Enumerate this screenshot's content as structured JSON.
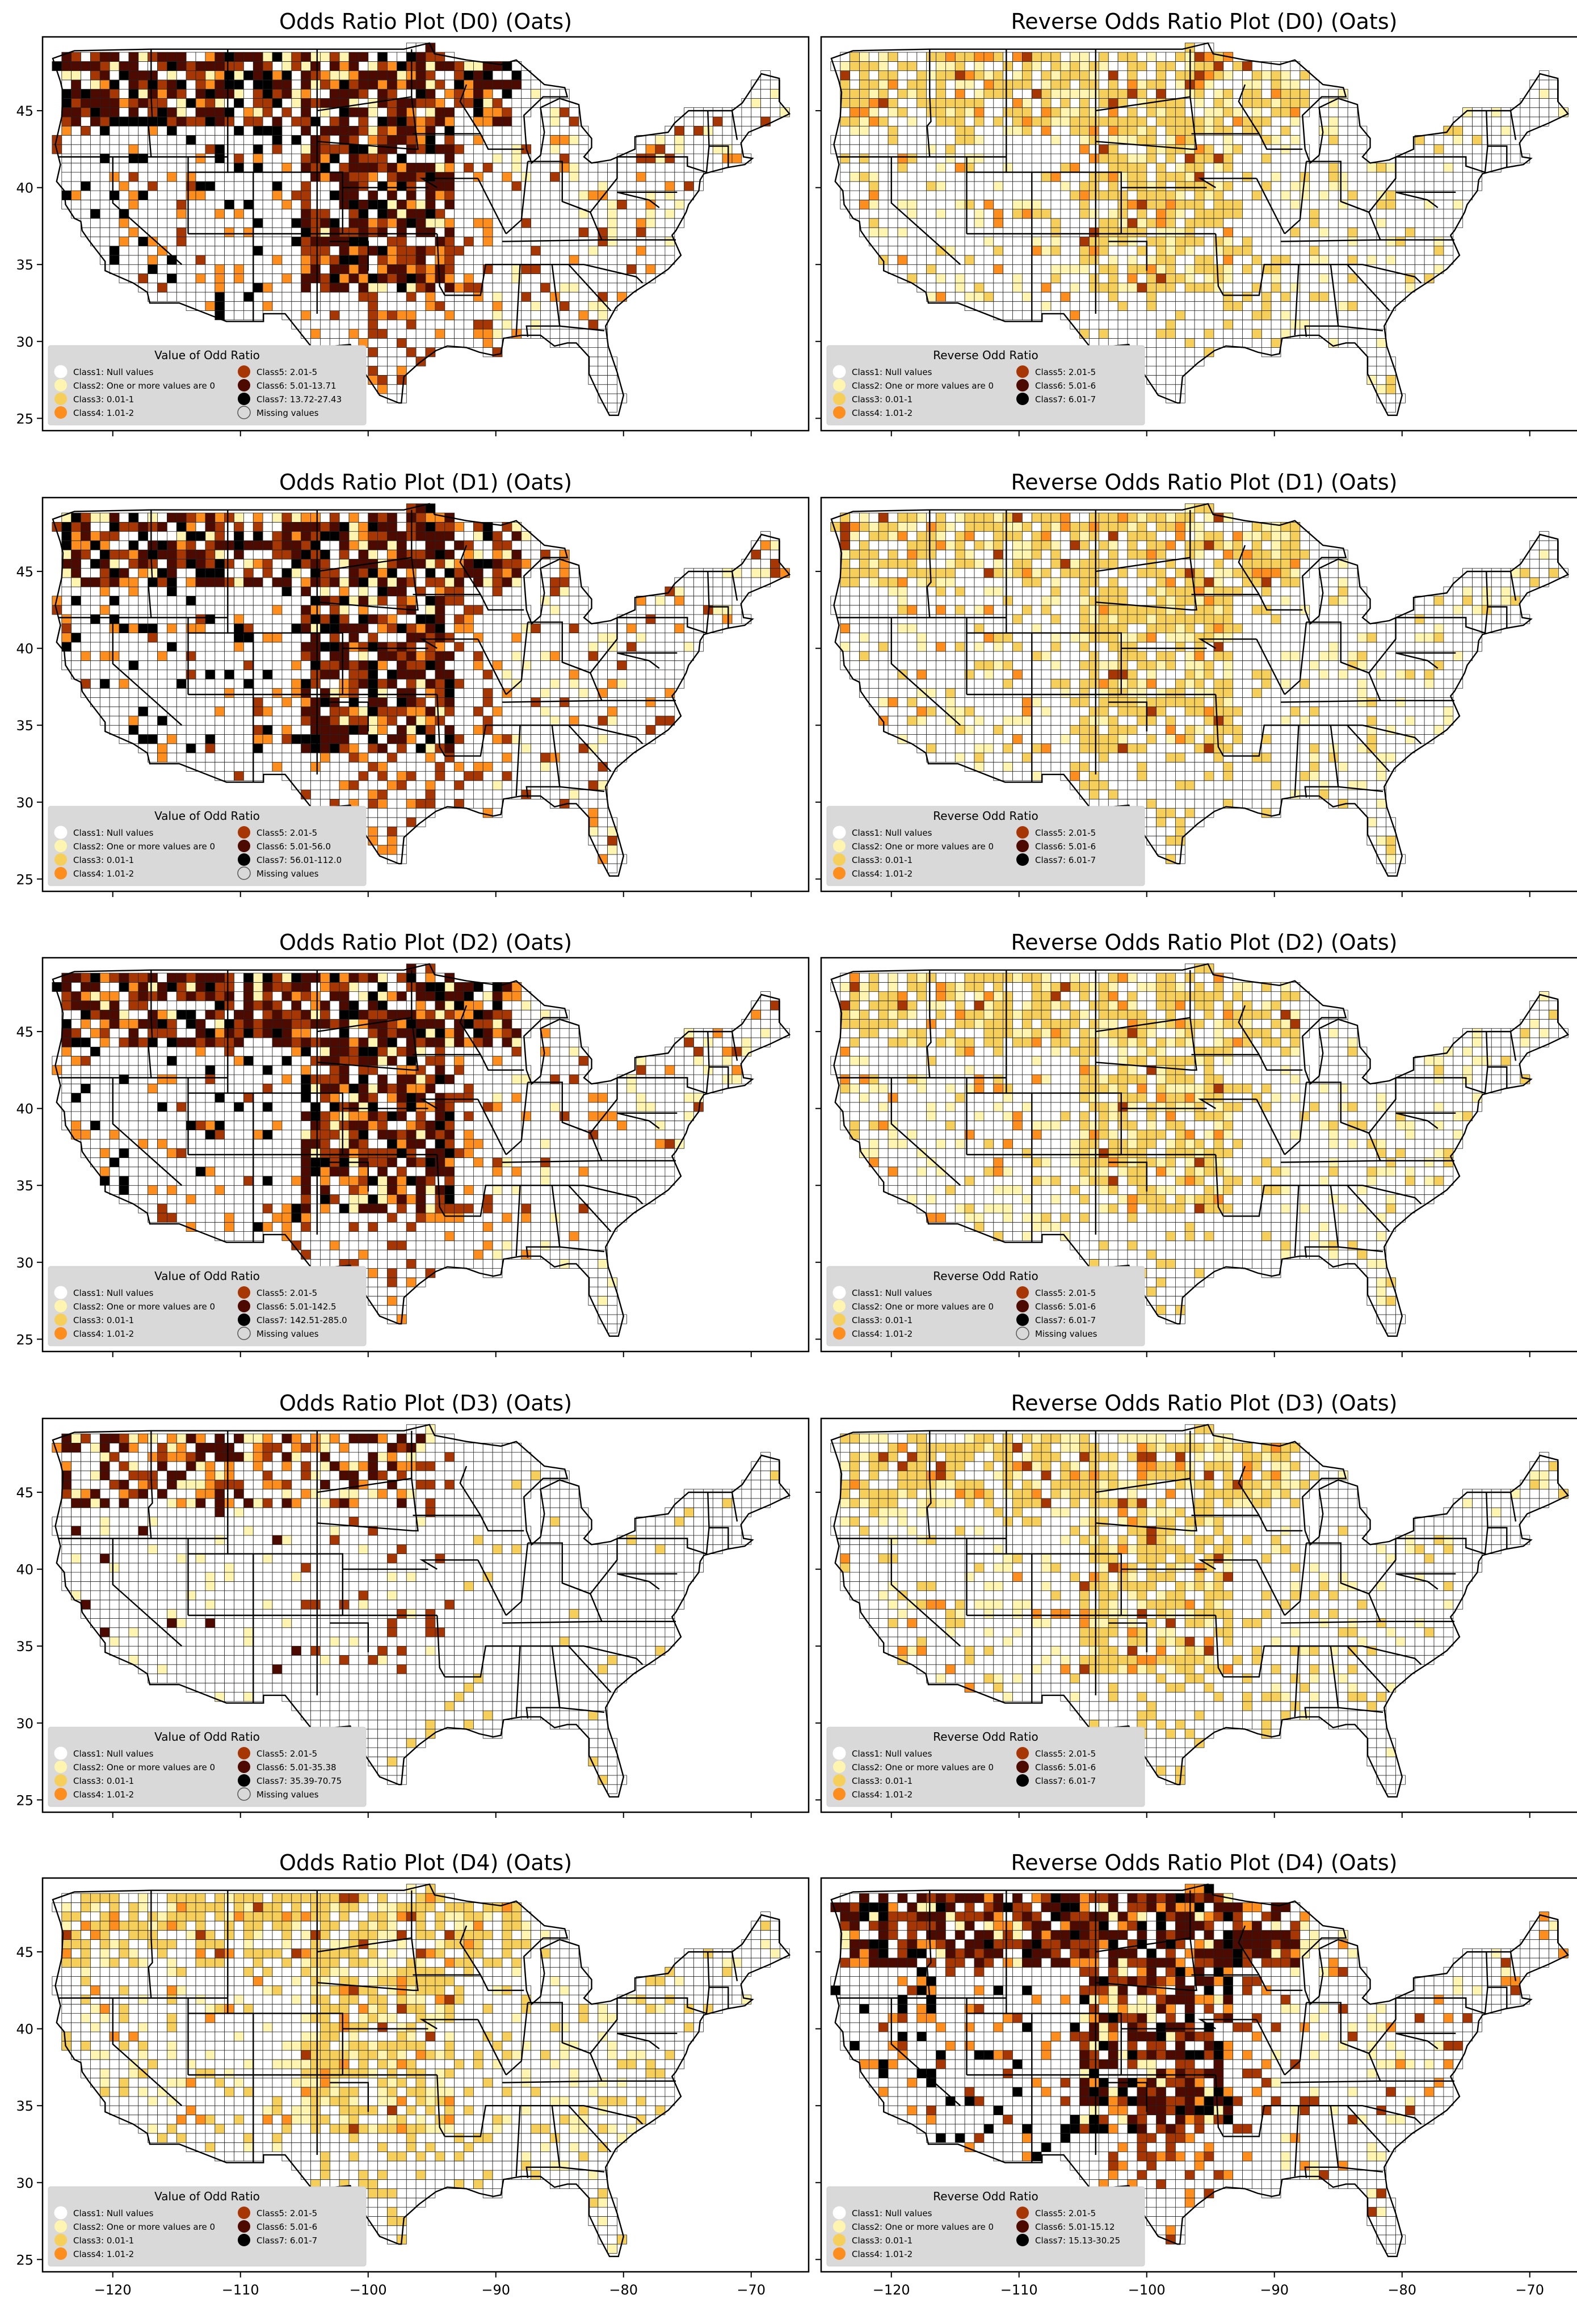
{
  "figure": {
    "x_ticks": [
      "-120",
      "-110",
      "-100",
      "-90",
      "-80",
      "-70"
    ],
    "y_ticks": [
      "25",
      "30",
      "35",
      "40",
      "45"
    ]
  },
  "legend_labels": {
    "odds_title": "Value of Odd Ratio",
    "reverse_title": "Reverse Odd Ratio",
    "c1": "Class1: Null values",
    "c2": "Class2: One or more values are 0",
    "c3": "Class3: 0.01-1",
    "c4": "Class4: 1.01-2",
    "c5": "Class5: 2.01-5",
    "missing": "Missing values"
  },
  "class_colors": {
    "c1": "#ffffff",
    "c2": "#fff5b0",
    "c3": "#f5cf5a",
    "c4": "#fd8d1c",
    "c5": "#a63603",
    "c6": "#4d0a00",
    "c7": "#000000",
    "missing": "#d9d9d9"
  },
  "panels": [
    {
      "title": "Odds Ratio Plot (D0) (Oats)",
      "legend_title": "Value of Odd Ratio",
      "c6": "Class6: 5.01-13.71",
      "c7": "Class7: 13.72-27.43",
      "missing": true,
      "dominant": "dark"
    },
    {
      "title": "Reverse Odds Ratio Plot (D0) (Oats)",
      "legend_title": "Reverse Odd Ratio",
      "c6": "Class6: 5.01-6",
      "c7": "Class7: 6.01-7",
      "missing": false,
      "dominant": "light"
    },
    {
      "title": "Odds Ratio Plot (D1) (Oats)",
      "legend_title": "Value of Odd Ratio",
      "c6": "Class6: 5.01-56.0",
      "c7": "Class7: 56.01-112.0",
      "missing": true,
      "dominant": "dark"
    },
    {
      "title": "Reverse Odds Ratio Plot (D1) (Oats)",
      "legend_title": "Reverse Odd Ratio",
      "c6": "Class6: 5.01-6",
      "c7": "Class7: 6.01-7",
      "missing": false,
      "dominant": "light"
    },
    {
      "title": "Odds Ratio Plot (D2) (Oats)",
      "legend_title": "Value of Odd Ratio",
      "c6": "Class6: 5.01-142.5",
      "c7": "Class7: 142.51-285.0",
      "missing": true,
      "dominant": "dark"
    },
    {
      "title": "Reverse Odds Ratio Plot (D2) (Oats)",
      "legend_title": "Reverse Odd Ratio",
      "c6": "Class6: 5.01-6",
      "c7": "Class7: 6.01-7",
      "missing": true,
      "dominant": "light"
    },
    {
      "title": "Odds Ratio Plot (D3) (Oats)",
      "legend_title": "Value of Odd Ratio",
      "c6": "Class6: 5.01-35.38",
      "c7": "Class7: 35.39-70.75",
      "missing": true,
      "dominant": "mixed"
    },
    {
      "title": "Reverse Odds Ratio Plot (D3) (Oats)",
      "legend_title": "Reverse Odd Ratio",
      "c6": "Class6: 5.01-6",
      "c7": "Class7: 6.01-7",
      "missing": false,
      "dominant": "light"
    },
    {
      "title": "Odds Ratio Plot (D4) (Oats)",
      "legend_title": "Value of Odd Ratio",
      "c6": "Class6: 5.01-6",
      "c7": "Class7: 6.01-7",
      "missing": false,
      "dominant": "light"
    },
    {
      "title": "Reverse Odds Ratio Plot (D4) (Oats)",
      "legend_title": "Reverse Odd Ratio",
      "c6": "Class6: 5.01-15.12",
      "c7": "Class7: 15.13-30.25",
      "missing": false,
      "dominant": "dark"
    }
  ]
}
